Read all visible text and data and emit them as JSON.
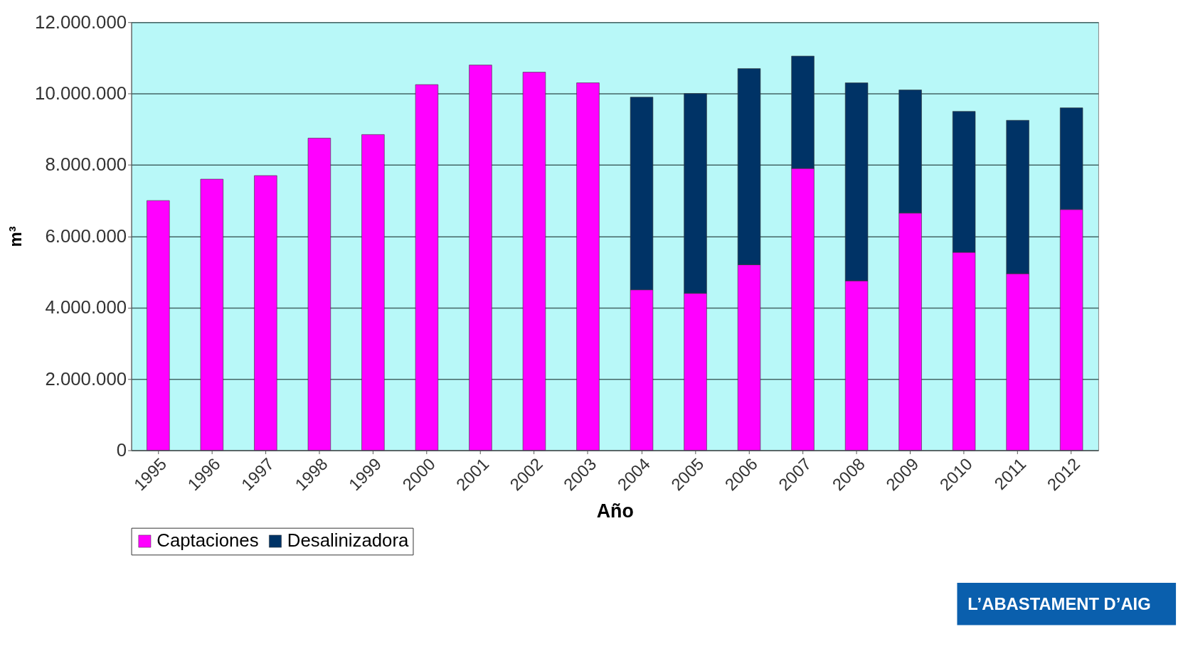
{
  "chart_data": {
    "type": "bar",
    "stacked": true,
    "xlabel": "Año",
    "ylabel": "m³",
    "categories": [
      "1995",
      "1996",
      "1997",
      "1998",
      "1999",
      "2000",
      "2001",
      "2002",
      "2003",
      "2004",
      "2005",
      "2006",
      "2007",
      "2008",
      "2009",
      "2010",
      "2011",
      "2012"
    ],
    "series": [
      {
        "name": "Captaciones",
        "color": "#ff00ff",
        "values": [
          7000000,
          7600000,
          7700000,
          8750000,
          8850000,
          10250000,
          10800000,
          10600000,
          10300000,
          4500000,
          4400000,
          5200000,
          7900000,
          4750000,
          6650000,
          5550000,
          4950000,
          6750000
        ]
      },
      {
        "name": "Desalinizadora",
        "color": "#003366",
        "values": [
          null,
          null,
          null,
          null,
          null,
          null,
          null,
          null,
          null,
          5400000,
          5600000,
          5500000,
          3150000,
          5550000,
          3450000,
          3950000,
          4300000,
          2850000
        ]
      }
    ],
    "ylim": [
      0,
      12000000
    ],
    "yticks": [
      0,
      {
        "value": 2000000,
        "label": "2.000.000"
      },
      {
        "value": 4000000,
        "label": "4.000.000"
      },
      {
        "value": 6000000,
        "label": "6.000.000"
      },
      {
        "value": 8000000,
        "label": "8.000.000"
      },
      {
        "value": 10000000,
        "label": "10.000.000"
      },
      {
        "value": 12000000,
        "label": "12.000.000"
      }
    ],
    "grid": "y",
    "legend": "bottom",
    "annotations": [
      "L’ABASTAMENT D’AIG"
    ]
  }
}
